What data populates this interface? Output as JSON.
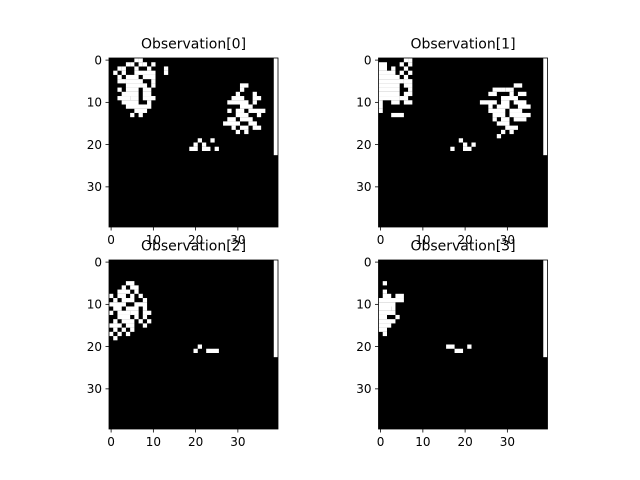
{
  "chart_data": [
    {
      "type": "heatmap",
      "title": "Observation[0]",
      "colormap": "binary (black=0, white=1)",
      "grid": false,
      "shape": [
        40,
        40
      ],
      "xlim": [
        0,
        39
      ],
      "ylim": [
        0,
        39
      ],
      "x_ticks": [
        "0",
        "10",
        "20",
        "30"
      ],
      "y_ticks": [
        "0",
        "10",
        "20",
        "30"
      ],
      "white_cells_by_row": [
        [
          [
            6,
            6
          ],
          [
            7,
            7
          ]
        ],
        [
          [
            4,
            4
          ],
          [
            5,
            5
          ],
          [
            7,
            7
          ],
          [
            8,
            8
          ],
          [
            10,
            10
          ]
        ],
        [
          [
            2,
            2
          ],
          [
            3,
            3
          ],
          [
            6,
            6
          ],
          [
            9,
            9
          ],
          [
            13,
            13
          ]
        ],
        [
          [
            1,
            1
          ],
          [
            3,
            3
          ],
          [
            6,
            10
          ],
          [
            13,
            13
          ]
        ],
        [
          [
            2,
            2
          ],
          [
            4,
            6
          ],
          [
            8,
            10
          ]
        ],
        [
          [
            2,
            3
          ],
          [
            4,
            7
          ],
          [
            10,
            10
          ]
        ],
        [
          [
            4,
            8
          ],
          [
            10,
            10
          ],
          [
            31,
            32
          ]
        ],
        [
          [
            2,
            2
          ],
          [
            4,
            6
          ],
          [
            8,
            9
          ],
          [
            31,
            31
          ]
        ],
        [
          [
            3,
            6
          ],
          [
            8,
            9
          ],
          [
            30,
            30
          ],
          [
            34,
            34
          ]
        ],
        [
          [
            2,
            4
          ],
          [
            5,
            6
          ],
          [
            8,
            10
          ],
          [
            29,
            31
          ],
          [
            34,
            35
          ]
        ],
        [
          [
            3,
            6
          ],
          [
            9,
            9
          ],
          [
            28,
            32
          ],
          [
            34,
            34
          ]
        ],
        [
          [
            4,
            9
          ],
          [
            31,
            33
          ]
        ],
        [
          [
            6,
            8
          ],
          [
            28,
            28
          ],
          [
            30,
            31
          ],
          [
            33,
            36
          ]
        ],
        [
          [
            5,
            5
          ],
          [
            7,
            7
          ],
          [
            30,
            32
          ],
          [
            35,
            35
          ]
        ],
        [
          [
            28,
            29
          ],
          [
            31,
            33
          ]
        ],
        [
          [
            27,
            30
          ],
          [
            33,
            34
          ]
        ],
        [
          [
            29,
            29
          ],
          [
            31,
            32
          ],
          [
            34,
            35
          ]
        ],
        [
          [
            30,
            30
          ],
          [
            32,
            32
          ]
        ],
        [],
        [
          [
            21,
            21
          ],
          [
            24,
            24
          ]
        ],
        [
          [
            20,
            20
          ],
          [
            22,
            22
          ]
        ],
        [
          [
            19,
            20
          ],
          [
            22,
            23
          ],
          [
            25,
            25
          ]
        ]
      ],
      "white_vertical_bar": {
        "column": 39,
        "rows": [
          0,
          22
        ]
      }
    },
    {
      "type": "heatmap",
      "title": "Observation[1]",
      "colormap": "binary (black=0, white=1)",
      "grid": false,
      "shape": [
        40,
        40
      ],
      "xlim": [
        0,
        39
      ],
      "ylim": [
        0,
        39
      ],
      "x_ticks": [
        "0",
        "10",
        "20",
        "30"
      ],
      "y_ticks": [
        "0",
        "10",
        "20",
        "30"
      ],
      "white_cells_by_row": [
        [
          [
            6,
            6
          ],
          [
            7,
            7
          ]
        ],
        [
          [
            0,
            1
          ],
          [
            5,
            5
          ],
          [
            7,
            7
          ]
        ],
        [
          [
            0,
            1
          ],
          [
            3,
            3
          ],
          [
            6,
            6
          ]
        ],
        [
          [
            0,
            3
          ],
          [
            5,
            5
          ],
          [
            7,
            7
          ]
        ],
        [
          [
            0,
            4
          ],
          [
            6,
            6
          ]
        ],
        [
          [
            0,
            5
          ],
          [
            6,
            7
          ]
        ],
        [
          [
            0,
            4
          ],
          [
            6,
            7
          ],
          [
            32,
            33
          ]
        ],
        [
          [
            0,
            4
          ],
          [
            7,
            7
          ],
          [
            27,
            28
          ],
          [
            29,
            29
          ],
          [
            30,
            31
          ]
        ],
        [
          [
            0,
            4
          ],
          [
            6,
            7
          ],
          [
            26,
            27
          ],
          [
            31,
            31
          ],
          [
            33,
            34
          ]
        ],
        [
          [
            0,
            4
          ],
          [
            5,
            6
          ],
          [
            29,
            32
          ]
        ],
        [
          [
            0,
            0
          ],
          [
            3,
            4
          ],
          [
            6,
            7
          ],
          [
            24,
            27
          ],
          [
            29,
            30
          ],
          [
            32,
            34
          ]
        ],
        [
          [
            0,
            0
          ],
          [
            26,
            26
          ],
          [
            28,
            30
          ],
          [
            33,
            35
          ]
        ],
        [
          [
            0,
            0
          ],
          [
            26,
            29
          ],
          [
            31,
            33
          ]
        ],
        [
          [
            3,
            5
          ],
          [
            27,
            29
          ],
          [
            31,
            35
          ]
        ],
        [
          [
            27,
            27
          ],
          [
            29,
            30
          ],
          [
            32,
            34
          ]
        ],
        [
          [
            28,
            30
          ]
        ],
        [
          [
            30,
            32
          ]
        ],
        [
          [
            29,
            29
          ],
          [
            31,
            31
          ]
        ],
        [
          [
            28,
            28
          ]
        ],
        [
          [
            19,
            19
          ]
        ],
        [
          [
            20,
            20
          ],
          [
            22,
            22
          ]
        ],
        [
          [
            17,
            17
          ],
          [
            20,
            21
          ]
        ]
      ],
      "white_vertical_bar": {
        "column": 39,
        "rows": [
          0,
          22
        ]
      }
    },
    {
      "type": "heatmap",
      "title": "Observation[2]",
      "colormap": "binary (black=0, white=1)",
      "grid": false,
      "shape": [
        40,
        40
      ],
      "xlim": [
        0,
        39
      ],
      "ylim": [
        0,
        39
      ],
      "x_ticks": [
        "0",
        "10",
        "20",
        "30"
      ],
      "y_ticks": [
        "0",
        "10",
        "20",
        "30"
      ],
      "white_cells_by_row": [
        [],
        [],
        [],
        [],
        [],
        [
          [
            4,
            5
          ]
        ],
        [
          [
            3,
            3
          ],
          [
            5,
            6
          ]
        ],
        [
          [
            2,
            4
          ],
          [
            6,
            6
          ]
        ],
        [
          [
            0,
            0
          ],
          [
            2,
            3
          ],
          [
            5,
            5
          ],
          [
            7,
            7
          ]
        ],
        [
          [
            1,
            1
          ],
          [
            3,
            5
          ],
          [
            8,
            8
          ]
        ],
        [
          [
            0,
            3
          ],
          [
            6,
            8
          ]
        ],
        [
          [
            1,
            2
          ],
          [
            4,
            6
          ],
          [
            8,
            8
          ]
        ],
        [
          [
            0,
            0
          ],
          [
            2,
            4
          ],
          [
            5,
            6
          ],
          [
            8,
            9
          ]
        ],
        [
          [
            2,
            4
          ],
          [
            6,
            6
          ],
          [
            8,
            8
          ]
        ],
        [
          [
            1,
            1
          ],
          [
            3,
            5
          ],
          [
            7,
            7
          ],
          [
            9,
            9
          ]
        ],
        [
          [
            0,
            2
          ],
          [
            4,
            5
          ],
          [
            8,
            8
          ]
        ],
        [
          [
            1,
            1
          ],
          [
            3,
            3
          ],
          [
            5,
            5
          ]
        ],
        [
          [
            0,
            0
          ],
          [
            2,
            2
          ],
          [
            4,
            4
          ]
        ],
        [
          [
            1,
            1
          ]
        ],
        [],
        [
          [
            21,
            21
          ]
        ],
        [
          [
            20,
            20
          ],
          [
            23,
            25
          ]
        ]
      ],
      "white_vertical_bar": {
        "column": 39,
        "rows": [
          0,
          22
        ]
      }
    },
    {
      "type": "heatmap",
      "title": "Observation[3]",
      "colormap": "binary (black=0, white=1)",
      "grid": false,
      "shape": [
        40,
        40
      ],
      "xlim": [
        0,
        39
      ],
      "ylim": [
        0,
        39
      ],
      "x_ticks": [
        "0",
        "10",
        "20",
        "30"
      ],
      "y_ticks": [
        "0",
        "10",
        "20",
        "30"
      ],
      "white_cells_by_row": [
        [],
        [],
        [],
        [],
        [],
        [
          [
            1,
            1
          ]
        ],
        [],
        [
          [
            1,
            1
          ]
        ],
        [
          [
            1,
            2
          ],
          [
            4,
            5
          ]
        ],
        [
          [
            0,
            5
          ]
        ],
        [
          [
            0,
            3
          ]
        ],
        [
          [
            0,
            2
          ],
          [
            3,
            3
          ]
        ],
        [
          [
            0,
            3
          ]
        ],
        [
          [
            0,
            1
          ],
          [
            4,
            4
          ]
        ],
        [
          [
            0,
            3
          ]
        ],
        [
          [
            0,
            2
          ]
        ],
        [
          [
            0,
            1
          ]
        ],
        [
          [
            1,
            1
          ]
        ],
        [],
        [],
        [
          [
            16,
            17
          ],
          [
            21,
            21
          ]
        ],
        [
          [
            18,
            19
          ]
        ]
      ],
      "white_vertical_bar": {
        "column": 39,
        "rows": [
          0,
          22
        ]
      }
    }
  ]
}
